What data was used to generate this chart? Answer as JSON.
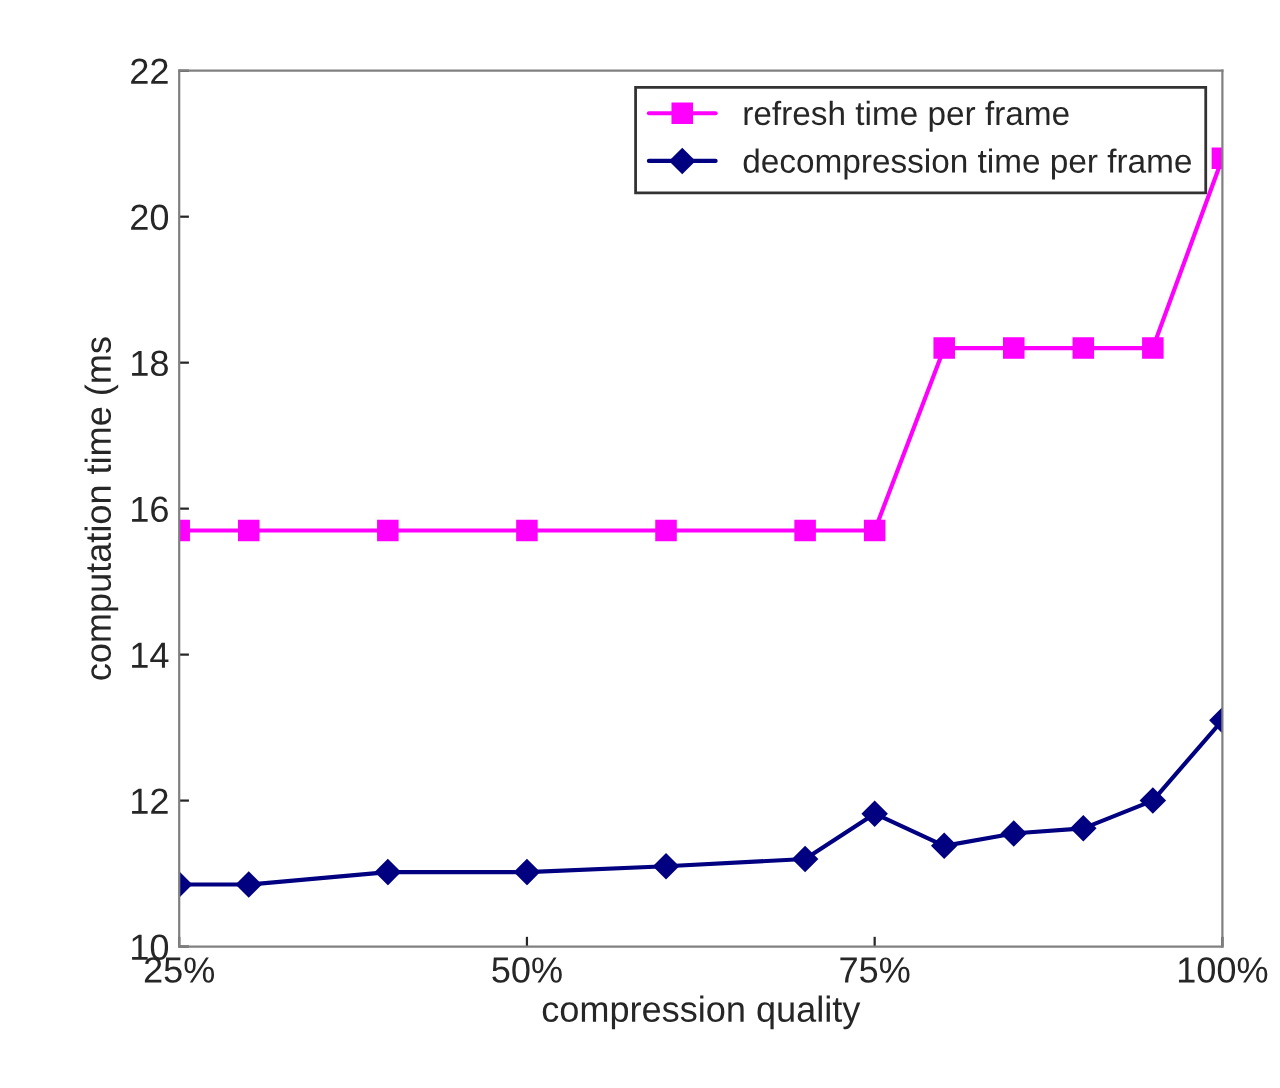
{
  "chart_data": {
    "type": "line",
    "xlabel": "compression quality",
    "ylabel": "computation time (ms",
    "x": [
      25,
      30,
      40,
      50,
      60,
      70,
      75,
      80,
      85,
      90,
      95,
      100
    ],
    "series": [
      {
        "name": "refresh time per frame",
        "color": "#ff00ff",
        "marker": "square",
        "values": [
          15.7,
          15.7,
          15.7,
          15.7,
          15.7,
          15.7,
          15.7,
          18.2,
          18.2,
          18.2,
          18.2,
          20.8
        ]
      },
      {
        "name": "decompression time per frame",
        "color": "#000080",
        "marker": "diamond",
        "values": [
          10.85,
          10.85,
          11.02,
          11.02,
          11.1,
          11.2,
          11.82,
          11.38,
          11.55,
          11.62,
          12.0,
          13.1
        ]
      }
    ],
    "xlim": [
      25,
      100
    ],
    "xticks": [
      {
        "value": 25,
        "label": "25%"
      },
      {
        "value": 50,
        "label": "50%"
      },
      {
        "value": 75,
        "label": "75%"
      },
      {
        "value": 100,
        "label": "100%"
      }
    ],
    "ylim": [
      10,
      22
    ],
    "yticks": [
      10,
      12,
      14,
      16,
      18,
      20,
      22
    ],
    "grid": false,
    "legend": "top right",
    "line_style": "solid"
  }
}
